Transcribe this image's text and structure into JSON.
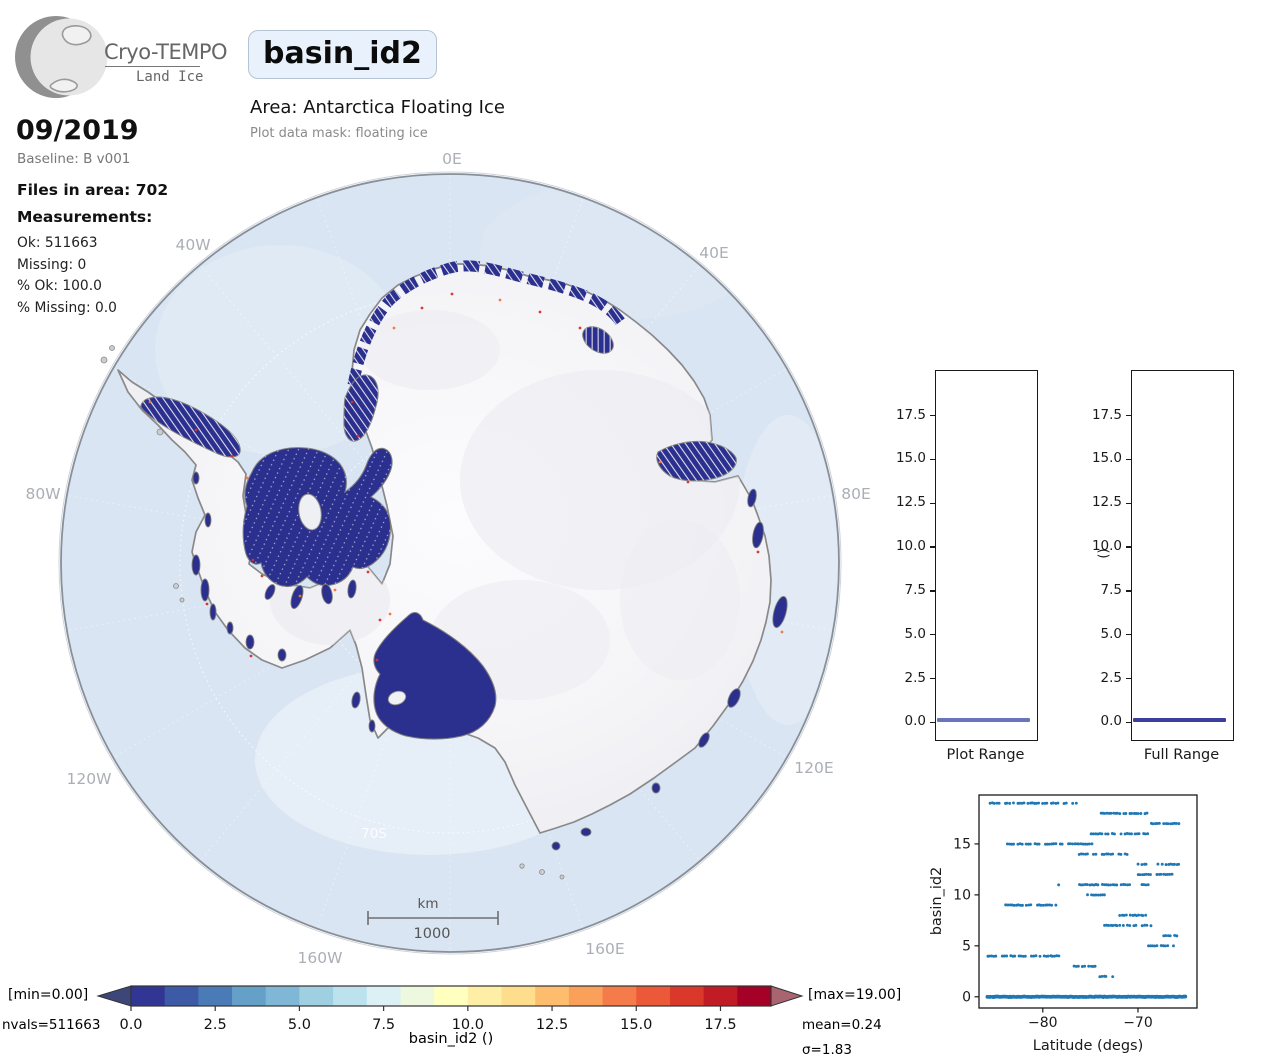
{
  "header": {
    "brand_line1": "Cryo-TEMPO",
    "brand_line2": "Land Ice",
    "title": "basin_id2",
    "area": "Area: Antarctica Floating Ice",
    "mask": "Plot data mask: floating ice"
  },
  "sidebar": {
    "date": "09/2019",
    "baseline": "Baseline: B v001",
    "files": "Files in area: 702",
    "measurements_label": "Measurements:",
    "stats": [
      {
        "text": "Ok: 511663"
      },
      {
        "text": "Missing: 0"
      },
      {
        "text": "% Ok: 100.0"
      },
      {
        "text": "% Missing: 0.0"
      }
    ]
  },
  "map": {
    "grid_labels": [
      {
        "text": "0E"
      },
      {
        "text": "40E"
      },
      {
        "text": "80E"
      },
      {
        "text": "120E"
      },
      {
        "text": "160E"
      },
      {
        "text": "160W"
      },
      {
        "text": "120W"
      },
      {
        "text": "80W"
      },
      {
        "text": "40W"
      }
    ],
    "lat_circle_label": "70S",
    "scalebar": {
      "unit": "km",
      "value": "1000"
    },
    "colors": {
      "ocean": "#d9e5f2",
      "land": "#f7f7fa",
      "coastline": "#898989",
      "data_track": "#2b2f8e",
      "anomaly_speck": "#d73027"
    }
  },
  "range_panels": {
    "ylim": [
      -0.95,
      20.1
    ],
    "yticks": [
      0.0,
      2.5,
      5.0,
      7.5,
      10.0,
      12.5,
      15.0,
      17.5
    ],
    "panels": [
      {
        "title": "Plot Range",
        "line_value": 0.15,
        "line_color": "#6b74ba",
        "ylabel": ""
      },
      {
        "title": "Full Range",
        "line_value": 0.15,
        "line_color": "#3d3f9f",
        "ylabel": "()"
      }
    ]
  },
  "chart_data": [
    {
      "type": "violin",
      "title": "Plot Range",
      "ylabel": "",
      "ylim": [
        -0.95,
        20.1
      ],
      "yticks": [
        0.0,
        2.5,
        5.0,
        7.5,
        10.0,
        12.5,
        15.0,
        17.5
      ],
      "median": 0.15,
      "note": "distribution collapsed near 0"
    },
    {
      "type": "violin",
      "title": "Full Range",
      "ylabel": "()",
      "ylim": [
        -0.95,
        20.1
      ],
      "yticks": [
        0.0,
        2.5,
        5.0,
        7.5,
        10.0,
        12.5,
        15.0,
        17.5
      ],
      "median": 0.15,
      "note": "distribution collapsed near 0"
    },
    {
      "type": "scatter",
      "xlabel": "Latitude (degs)",
      "ylabel": "basin_id2",
      "xlim": [
        -86.7,
        -63.8
      ],
      "ylim": [
        -1.1,
        19.8
      ],
      "xticks": [
        -80,
        -70
      ],
      "yticks": [
        0,
        5,
        10,
        15
      ],
      "series": [
        {
          "name": "basin_id2 vs latitude",
          "color": "#1f77b4",
          "segments": [
            {
              "basin_id": 19,
              "lat_range": [
                -85.5,
                -76.3
              ]
            },
            {
              "basin_id": 18,
              "lat_range": [
                -73.9,
                -71.8
              ]
            },
            {
              "basin_id": 18,
              "lat_range": [
                -71.5,
                -69.7
              ]
            },
            {
              "basin_id": 18,
              "lat_range": [
                -69.3,
                -68.9
              ]
            },
            {
              "basin_id": 17,
              "lat_range": [
                -68.6,
                -65.7
              ]
            },
            {
              "basin_id": 16,
              "lat_range": [
                -74.9,
                -73.1
              ]
            },
            {
              "basin_id": 16,
              "lat_range": [
                -72.7,
                -70.6
              ]
            },
            {
              "basin_id": 16,
              "lat_range": [
                -70.3,
                -68.4
              ]
            },
            {
              "basin_id": 15,
              "lat_range": [
                -83.7,
                -74.5
              ]
            },
            {
              "basin_id": 14,
              "lat_range": [
                -76.2,
                -71.0
              ]
            },
            {
              "basin_id": 13,
              "lat_range": [
                -70.0,
                -68.9
              ]
            },
            {
              "basin_id": 13,
              "lat_range": [
                -67.9,
                -65.6
              ]
            },
            {
              "basin_id": 12,
              "lat_range": [
                -70.0,
                -68.6
              ]
            },
            {
              "basin_id": 12,
              "lat_range": [
                -68.0,
                -66.4
              ]
            },
            {
              "basin_id": 11,
              "lat_range": [
                -78.3,
                -78.1
              ]
            },
            {
              "basin_id": 11,
              "lat_range": [
                -76.4,
                -70.8
              ]
            },
            {
              "basin_id": 11,
              "lat_range": [
                -69.6,
                -68.5
              ]
            },
            {
              "basin_id": 10,
              "lat_range": [
                -75.5,
                -73.3
              ]
            },
            {
              "basin_id": 9,
              "lat_range": [
                -83.9,
                -78.5
              ]
            },
            {
              "basin_id": 8,
              "lat_range": [
                -72.1,
                -69.1
              ]
            },
            {
              "basin_id": 7,
              "lat_range": [
                -73.5,
                -68.4
              ]
            },
            {
              "basin_id": 6,
              "lat_range": [
                -67.5,
                -65.9
              ]
            },
            {
              "basin_id": 5,
              "lat_range": [
                -68.9,
                -66.1
              ]
            },
            {
              "basin_id": 4,
              "lat_range": [
                -85.8,
                -78.2
              ]
            },
            {
              "basin_id": 3,
              "lat_range": [
                -76.7,
                -74.4
              ]
            },
            {
              "basin_id": 2,
              "lat_range": [
                -74.0,
                -72.6
              ]
            },
            {
              "basin_id": 0,
              "lat_range": [
                -85.8,
                -64.9
              ]
            }
          ]
        }
      ]
    }
  ],
  "colorbar": {
    "min_label": "[min=0.00]",
    "max_label": "[max=19.00]",
    "nvals_label": "nvals=511663",
    "mean_label": "mean=0.24",
    "sigma_label": "σ=1.83",
    "axis_label": "basin_id2 ()",
    "vmin": 0,
    "vmax": 19,
    "ticks": [
      0.0,
      2.5,
      5.0,
      7.5,
      10.0,
      12.5,
      15.0,
      17.5
    ],
    "under_color": "#3c4679",
    "over_color": "#a8656f",
    "segment_colors": [
      "#313695",
      "#3c5aa6",
      "#4a7bb7",
      "#64a0c8",
      "#80b7d6",
      "#9fd0e2",
      "#bce2ee",
      "#dbf1f6",
      "#eef8de",
      "#ffffbf",
      "#ffeea5",
      "#fedd8d",
      "#fdbd6d",
      "#fba05a",
      "#f67b4a",
      "#ec5939",
      "#da382a",
      "#c11c26",
      "#a50026"
    ]
  }
}
